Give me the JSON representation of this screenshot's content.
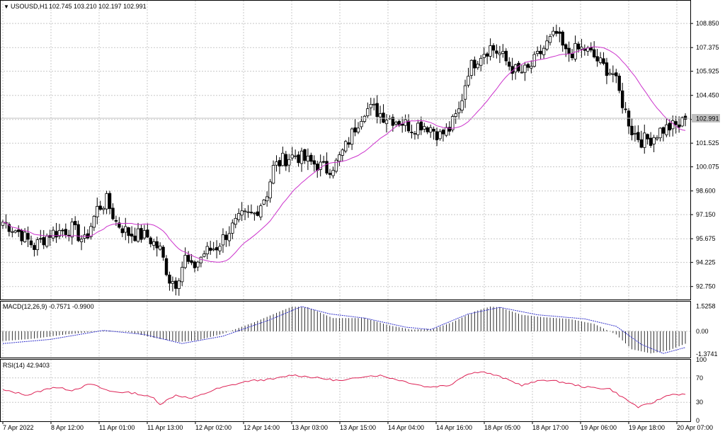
{
  "header": {
    "symbol_label": "USOUSD,H1",
    "ohlc_label": "102.745 103.210 102.197 102.991"
  },
  "main_panel": {
    "y_ticks": [
      "108.850",
      "107.375",
      "105.925",
      "104.450",
      "102.975",
      "101.525",
      "100.075",
      "98.600",
      "97.150",
      "95.675",
      "94.225",
      "92.750"
    ],
    "current_price": "102.991"
  },
  "macd_panel": {
    "title": "MACD(12,26,9) -0.7571 -0.9900",
    "y_ticks": [
      "1.5258",
      "0.00",
      "-1.3741"
    ]
  },
  "rsi_panel": {
    "title": "RSI(14) 42.9403",
    "y_ticks": [
      "100",
      "70",
      "30",
      "0"
    ]
  },
  "x_ticks": [
    "7 Apr 2022",
    "8 Apr 12:00",
    "11 Apr 01:00",
    "11 Apr 13:00",
    "12 Apr 02:00",
    "12 Apr 14:00",
    "13 Apr 03:00",
    "13 Apr 15:00",
    "14 Apr 04:00",
    "14 Apr 16:00",
    "18 Apr 05:00",
    "18 Apr 17:00",
    "19 Apr 06:00",
    "19 Apr 18:00",
    "20 Apr 07:00"
  ],
  "colors": {
    "grid": "#c8c8c8",
    "ma_line": "#cc33cc",
    "macd_signal": "#3333cc",
    "rsi_line": "#dd2255",
    "candle": "#000000",
    "current_price_box": "#c0c0c0"
  },
  "chart_data": [
    {
      "type": "candlestick",
      "title": "USOUSD,H1",
      "ylim": [
        92.0,
        110.2
      ],
      "overlay": "moving average (purple line)",
      "anchor_closes": [
        [
          0,
          96.7
        ],
        [
          5,
          96.1
        ],
        [
          10,
          95.2
        ],
        [
          15,
          96.0
        ],
        [
          22,
          96.3
        ],
        [
          26,
          95.5
        ],
        [
          30,
          97.5
        ],
        [
          33,
          98.0
        ],
        [
          36,
          96.7
        ],
        [
          40,
          96.0
        ],
        [
          46,
          95.8
        ],
        [
          50,
          95.0
        ],
        [
          53,
          93.2
        ],
        [
          55,
          93.0
        ],
        [
          58,
          94.5
        ],
        [
          60,
          93.8
        ],
        [
          64,
          94.8
        ],
        [
          68,
          95.2
        ],
        [
          72,
          96.2
        ],
        [
          76,
          97.0
        ],
        [
          80,
          97.2
        ],
        [
          84,
          98.5
        ],
        [
          86,
          100.0
        ],
        [
          89,
          100.5
        ],
        [
          93,
          100.8
        ],
        [
          97,
          100.4
        ],
        [
          100,
          100.2
        ],
        [
          103,
          99.9
        ],
        [
          106,
          100.3
        ],
        [
          109,
          101.3
        ],
        [
          112,
          102.5
        ],
        [
          115,
          103.6
        ],
        [
          118,
          103.6
        ],
        [
          121,
          103.2
        ],
        [
          124,
          103.0
        ],
        [
          127,
          102.8
        ],
        [
          130,
          102.5
        ],
        [
          133,
          102.7
        ],
        [
          136,
          102.5
        ],
        [
          139,
          102.0
        ],
        [
          142,
          102.4
        ],
        [
          145,
          103.5
        ],
        [
          148,
          106.0
        ],
        [
          152,
          107.0
        ],
        [
          155,
          107.4
        ],
        [
          158,
          107.0
        ],
        [
          161,
          106.3
        ],
        [
          164,
          105.8
        ],
        [
          167,
          106.0
        ],
        [
          170,
          106.8
        ],
        [
          173,
          107.6
        ],
        [
          176,
          108.2
        ],
        [
          179,
          107.0
        ],
        [
          182,
          107.2
        ],
        [
          185,
          107.3
        ],
        [
          188,
          106.8
        ],
        [
          191,
          106.2
        ],
        [
          194,
          105.8
        ],
        [
          197,
          104.0
        ],
        [
          200,
          102.3
        ],
        [
          203,
          101.7
        ],
        [
          206,
          101.8
        ],
        [
          209,
          102.3
        ],
        [
          212,
          102.5
        ],
        [
          215,
          102.6
        ],
        [
          217,
          102.99
        ]
      ]
    },
    {
      "type": "bar",
      "title": "MACD(12,26,9)",
      "main": -0.7571,
      "signal": -0.99,
      "ylim": [
        -1.6,
        1.8
      ],
      "histogram_keyframes": [
        [
          0,
          -0.6
        ],
        [
          10,
          -0.45
        ],
        [
          20,
          -0.2
        ],
        [
          33,
          0.05
        ],
        [
          40,
          -0.05
        ],
        [
          48,
          -0.4
        ],
        [
          56,
          -0.65
        ],
        [
          62,
          -0.55
        ],
        [
          70,
          -0.15
        ],
        [
          80,
          0.55
        ],
        [
          88,
          1.2
        ],
        [
          92,
          1.5
        ],
        [
          97,
          1.45
        ],
        [
          105,
          0.8
        ],
        [
          115,
          0.8
        ],
        [
          123,
          0.35
        ],
        [
          130,
          0.1
        ],
        [
          137,
          0.15
        ],
        [
          143,
          0.55
        ],
        [
          150,
          1.2
        ],
        [
          155,
          1.5
        ],
        [
          158,
          1.45
        ],
        [
          165,
          1.0
        ],
        [
          172,
          0.85
        ],
        [
          180,
          0.75
        ],
        [
          188,
          0.45
        ],
        [
          195,
          -0.2
        ],
        [
          200,
          -1.1
        ],
        [
          206,
          -1.35
        ],
        [
          212,
          -1.15
        ],
        [
          217,
          -0.76
        ]
      ],
      "signal_keyframes": [
        [
          0,
          -0.75
        ],
        [
          15,
          -0.5
        ],
        [
          32,
          0.05
        ],
        [
          45,
          -0.2
        ],
        [
          57,
          -0.75
        ],
        [
          70,
          -0.3
        ],
        [
          85,
          0.7
        ],
        [
          95,
          1.5
        ],
        [
          104,
          1.05
        ],
        [
          115,
          0.8
        ],
        [
          128,
          0.25
        ],
        [
          136,
          0.1
        ],
        [
          148,
          1.05
        ],
        [
          158,
          1.45
        ],
        [
          170,
          1.0
        ],
        [
          185,
          0.75
        ],
        [
          195,
          0.3
        ],
        [
          203,
          -0.8
        ],
        [
          210,
          -1.35
        ],
        [
          217,
          -0.99
        ]
      ]
    },
    {
      "type": "line",
      "title": "RSI(14)",
      "value": 42.9403,
      "ylim": [
        0,
        100
      ],
      "levels": [
        30,
        70
      ],
      "rsi_keyframes": [
        [
          0,
          50
        ],
        [
          8,
          42
        ],
        [
          16,
          55
        ],
        [
          22,
          50
        ],
        [
          28,
          60
        ],
        [
          34,
          48
        ],
        [
          42,
          45
        ],
        [
          48,
          37
        ],
        [
          50,
          27
        ],
        [
          55,
          42
        ],
        [
          60,
          36
        ],
        [
          68,
          52
        ],
        [
          78,
          65
        ],
        [
          86,
          68
        ],
        [
          92,
          75
        ],
        [
          100,
          70
        ],
        [
          108,
          65
        ],
        [
          115,
          73
        ],
        [
          120,
          74
        ],
        [
          128,
          64
        ],
        [
          135,
          55
        ],
        [
          142,
          58
        ],
        [
          147,
          75
        ],
        [
          152,
          81
        ],
        [
          158,
          72
        ],
        [
          165,
          58
        ],
        [
          172,
          67
        ],
        [
          178,
          63
        ],
        [
          185,
          55
        ],
        [
          193,
          52
        ],
        [
          198,
          35
        ],
        [
          202,
          22
        ],
        [
          206,
          28
        ],
        [
          212,
          43
        ],
        [
          217,
          43
        ]
      ]
    }
  ]
}
